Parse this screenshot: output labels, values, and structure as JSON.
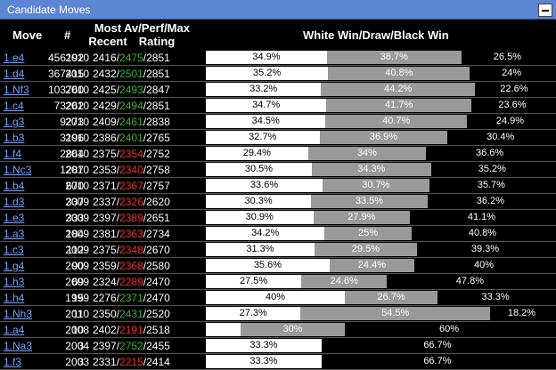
{
  "panel": {
    "title": "Candidate Moves"
  },
  "header": {
    "move": "Move",
    "count": "#",
    "recent": "Most Recent",
    "rating": "Av/Perf/Max Rating",
    "wdb": "White Win/Draw/Black Win"
  },
  "rows": [
    {
      "move": "1.e4",
      "count": "456192",
      "year": "2010",
      "avg": "2416",
      "perf": "2475",
      "perf_bad": false,
      "max": "2851",
      "w": 34.9,
      "d": 38.7,
      "b": 26.5,
      "wl": "34.9%",
      "dl": "38.7%",
      "bl": "26.5%"
    },
    {
      "move": "1.d4",
      "count": "367415",
      "year": "2010",
      "avg": "2432",
      "perf": "2501",
      "perf_bad": false,
      "max": "2851",
      "w": 35.2,
      "d": 40.8,
      "b": 24,
      "wl": "35.2%",
      "dl": "40.8%",
      "bl": "24%"
    },
    {
      "move": "1.Nf3",
      "count": "103760",
      "year": "2010",
      "avg": "2425",
      "perf": "2493",
      "perf_bad": false,
      "max": "2847",
      "w": 33.2,
      "d": 44.2,
      "b": 22.6,
      "wl": "33.2%",
      "dl": "44.2%",
      "bl": "22.6%"
    },
    {
      "move": "1.c4",
      "count": "73262",
      "year": "2010",
      "avg": "2429",
      "perf": "2494",
      "perf_bad": false,
      "max": "2851",
      "w": 34.7,
      "d": 41.7,
      "b": 23.6,
      "wl": "34.7%",
      "dl": "41.7%",
      "bl": "23.6%"
    },
    {
      "move": "1.g3",
      "count": "9273",
      "year": "2010",
      "avg": "2409",
      "perf": "2461",
      "perf_bad": false,
      "max": "2838",
      "w": 34.5,
      "d": 40.7,
      "b": 24.9,
      "wl": "34.5%",
      "dl": "40.7%",
      "bl": "24.9%"
    },
    {
      "move": "1.b3",
      "count": "3196",
      "year": "2010",
      "avg": "2386",
      "perf": "2401",
      "perf_bad": false,
      "max": "2765",
      "w": 32.7,
      "d": 36.9,
      "b": 30.4,
      "wl": "32.7%",
      "dl": "36.9%",
      "bl": "30.4%"
    },
    {
      "move": "1.f4",
      "count": "2864",
      "year": "2010",
      "avg": "2375",
      "perf": "2354",
      "perf_bad": true,
      "max": "2752",
      "w": 29.4,
      "d": 34,
      "b": 36.6,
      "wl": "29.4%",
      "dl": "34%",
      "bl": "36.6%"
    },
    {
      "move": "1.Nc3",
      "count": "1287",
      "year": "2010",
      "avg": "2353",
      "perf": "2340",
      "perf_bad": true,
      "max": "2758",
      "w": 30.5,
      "d": 34.3,
      "b": 35.2,
      "wl": "30.5%",
      "dl": "34.3%",
      "bl": "35.2%"
    },
    {
      "move": "1.b4",
      "count": "670",
      "year": "2010",
      "avg": "2371",
      "perf": "2367",
      "perf_bad": true,
      "max": "2757",
      "w": 33.6,
      "d": 30.7,
      "b": 35.7,
      "wl": "33.6%",
      "dl": "30.7%",
      "bl": "35.7%"
    },
    {
      "move": "1.d3",
      "count": "337",
      "year": "2009",
      "avg": "2337",
      "perf": "2326",
      "perf_bad": true,
      "max": "2620",
      "w": 30.3,
      "d": 33.5,
      "b": 36.2,
      "wl": "30.3%",
      "dl": "33.5%",
      "bl": "36.2%"
    },
    {
      "move": "1.e3",
      "count": "333",
      "year": "2009",
      "avg": "2397",
      "perf": "2389",
      "perf_bad": true,
      "max": "2651",
      "w": 30.9,
      "d": 27.9,
      "b": 41.1,
      "wl": "30.9%",
      "dl": "27.9%",
      "bl": "41.1%"
    },
    {
      "move": "1.a3",
      "count": "184",
      "year": "2009",
      "avg": "2381",
      "perf": "2363",
      "perf_bad": true,
      "max": "2734",
      "w": 34.2,
      "d": 25,
      "b": 40.8,
      "wl": "34.2%",
      "dl": "25%",
      "bl": "40.8%"
    },
    {
      "move": "1.c3",
      "count": "112",
      "year": "2009",
      "avg": "2375",
      "perf": "2348",
      "perf_bad": true,
      "max": "2670",
      "w": 31.3,
      "d": 29.5,
      "b": 39.3,
      "wl": "31.3%",
      "dl": "29.5%",
      "bl": "39.3%"
    },
    {
      "move": "1.g4",
      "count": "90",
      "year": "2009",
      "avg": "2359",
      "perf": "2368",
      "perf_bad": true,
      "max": "2580",
      "w": 35.6,
      "d": 24.4,
      "b": 40,
      "wl": "35.6%",
      "dl": "24.4%",
      "bl": "40%"
    },
    {
      "move": "1.h3",
      "count": "69",
      "year": "2009",
      "avg": "2324",
      "perf": "2289",
      "perf_bad": true,
      "max": "2470",
      "w": 27.5,
      "d": 24.6,
      "b": 47.8,
      "wl": "27.5%",
      "dl": "24.6%",
      "bl": "47.8%"
    },
    {
      "move": "1.h4",
      "count": "15",
      "year": "1999",
      "avg": "2276",
      "perf": "2371",
      "perf_bad": false,
      "max": "2470",
      "w": 40,
      "d": 26.7,
      "b": 33.3,
      "wl": "40%",
      "dl": "26.7%",
      "bl": "33.3%"
    },
    {
      "move": "1.Nh3",
      "count": "11",
      "year": "2010",
      "avg": "2350",
      "perf": "2431",
      "perf_bad": false,
      "max": "2520",
      "w": 27.3,
      "d": 54.5,
      "b": 18.2,
      "wl": "27.3%",
      "dl": "54.5%",
      "bl": "18.2%"
    },
    {
      "move": "1.a4",
      "count": "10",
      "year": "2008",
      "avg": "2402",
      "perf": "2191",
      "perf_bad": true,
      "max": "2518",
      "w": 10,
      "d": 30,
      "b": 60,
      "wl": "",
      "dl": "30%",
      "bl": "60%"
    },
    {
      "move": "1.Na3",
      "count": "3",
      "year": "2004",
      "avg": "2397",
      "perf": "2752",
      "perf_bad": false,
      "max": "2455",
      "w": 33.3,
      "d": 0,
      "b": 66.7,
      "wl": "33.3%",
      "dl": "",
      "bl": "66.7%"
    },
    {
      "move": "1.f3",
      "count": "3",
      "year": "2003",
      "avg": "2331",
      "perf": "2215",
      "perf_bad": true,
      "max": "2414",
      "w": 33.3,
      "d": 0,
      "b": 66.7,
      "wl": "33.3%",
      "dl": "",
      "bl": "66.7%"
    }
  ]
}
